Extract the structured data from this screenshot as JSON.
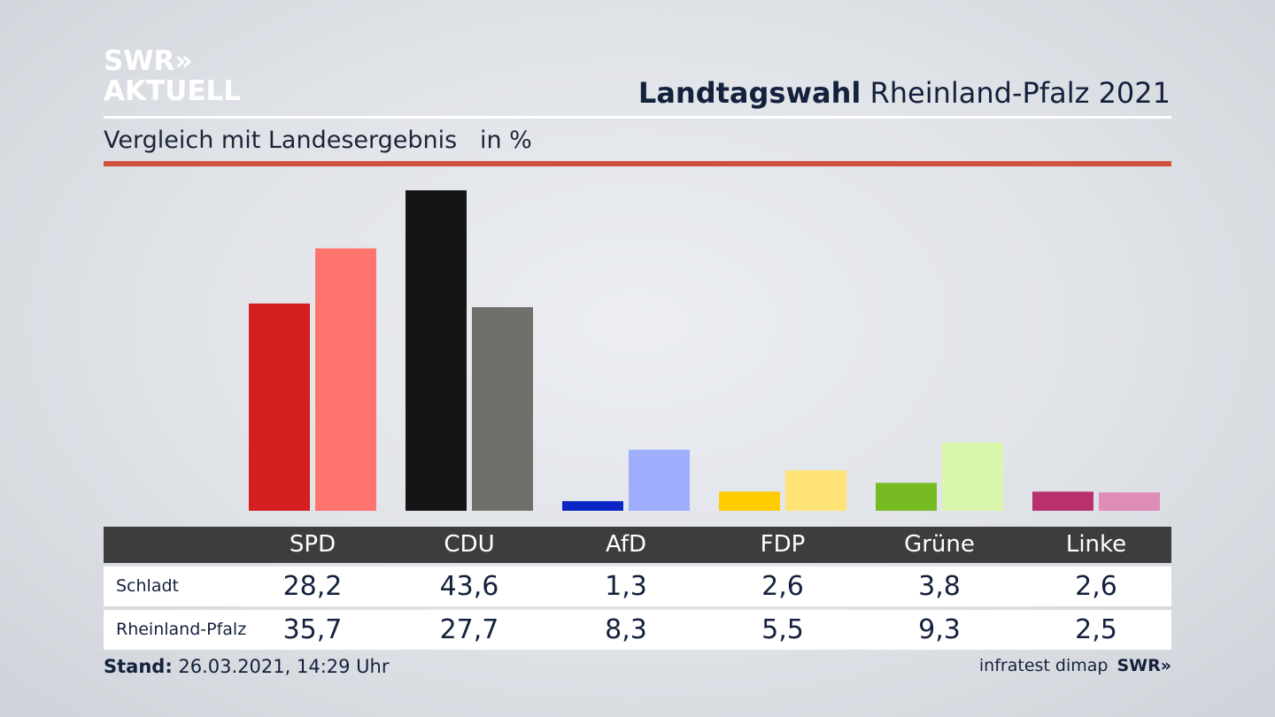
{
  "brand": {
    "line1": "SWR»",
    "line2": "AKTUELL"
  },
  "header": {
    "title_bold": "Landtagswahl",
    "title_rest": " Rheinland-Pfalz 2021"
  },
  "subtitle": {
    "text": "Vergleich mit Landesergebnis",
    "unit": "in %"
  },
  "footer": {
    "stand_label": "Stand:",
    "stand_value": " 26.03.2021, 14:29 Uhr",
    "source": "infratest dimap",
    "source_logo": "SWR»"
  },
  "chart_data": {
    "type": "bar",
    "categories": [
      "SPD",
      "CDU",
      "AfD",
      "FDP",
      "Grüne",
      "Linke"
    ],
    "series": [
      {
        "name": "Schladt",
        "values": [
          28.2,
          43.6,
          1.3,
          2.6,
          3.8,
          2.6
        ],
        "labels": [
          "28,2",
          "43,6",
          "1,3",
          "2,6",
          "3,8",
          "2,6"
        ]
      },
      {
        "name": "Rheinland-Pfalz",
        "values": [
          35.7,
          27.7,
          8.3,
          5.5,
          9.3,
          2.5
        ],
        "labels": [
          "35,7",
          "27,7",
          "8,3",
          "5,5",
          "9,3",
          "2,5"
        ]
      }
    ],
    "colors": {
      "Schladt": [
        "#d42020",
        "#151515",
        "#0a27c4",
        "#ffcc00",
        "#77bb22",
        "#b8306e"
      ],
      "Rheinland-Pfalz": [
        "#ff756e",
        "#706f6c",
        "#9fadfd",
        "#ffe376",
        "#d8f7aa",
        "#e08cb8"
      ]
    },
    "ylim": [
      0,
      43.6
    ],
    "grid": false
  }
}
